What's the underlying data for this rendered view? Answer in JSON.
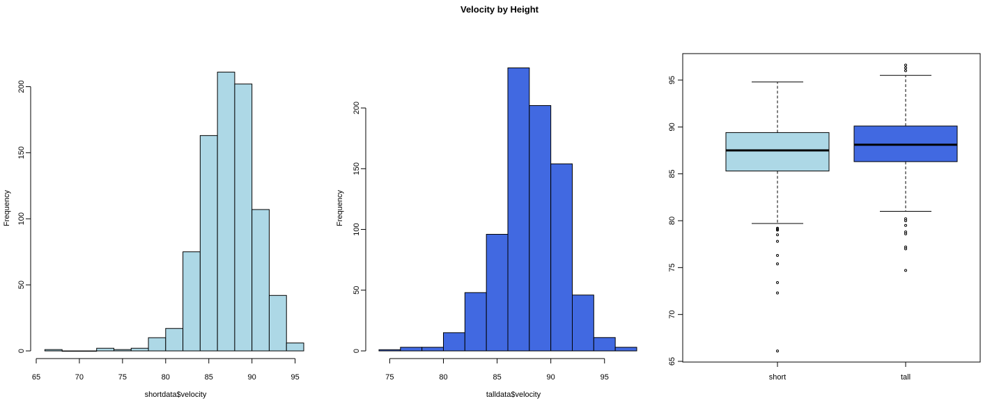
{
  "title": "Velocity by Height",
  "chart_data": [
    {
      "type": "bar",
      "subtype": "histogram",
      "color": "#ADD8E6",
      "xlabel": "shortdata$velocity",
      "ylabel": "Frequency",
      "bin_edges": [
        66,
        68,
        70,
        72,
        74,
        76,
        78,
        80,
        82,
        84,
        86,
        88,
        90,
        92,
        94,
        96
      ],
      "values": [
        1,
        0,
        0,
        2,
        1,
        2,
        10,
        17,
        75,
        163,
        211,
        202,
        107,
        42,
        6
      ],
      "xlim": [
        65,
        96
      ],
      "ylim": [
        0,
        215
      ],
      "xticks": [
        65,
        70,
        75,
        80,
        85,
        90,
        95
      ],
      "yticks": [
        0,
        50,
        100,
        150,
        200
      ]
    },
    {
      "type": "bar",
      "subtype": "histogram",
      "color": "#4169E1",
      "xlabel": "talldata$velocity",
      "ylabel": "Frequency",
      "bin_edges": [
        74,
        76,
        78,
        80,
        82,
        84,
        86,
        88,
        90,
        92,
        94,
        96,
        98
      ],
      "values": [
        1,
        3,
        3,
        15,
        48,
        96,
        233,
        202,
        154,
        46,
        11,
        3
      ],
      "xlim": [
        74,
        98
      ],
      "ylim": [
        0,
        235
      ],
      "xticks": [
        75,
        80,
        85,
        90,
        95
      ],
      "yticks": [
        0,
        50,
        100,
        150,
        200
      ]
    },
    {
      "type": "box",
      "categories": [
        "short",
        "tall"
      ],
      "ylim": [
        65,
        97
      ],
      "yticks": [
        65,
        70,
        75,
        80,
        85,
        90,
        95
      ],
      "boxes": [
        {
          "name": "short",
          "color": "#ADD8E6",
          "whisker_low": 79.7,
          "q1": 85.3,
          "median": 87.5,
          "q3": 89.4,
          "whisker_high": 94.8,
          "outliers": [
            79.0,
            79.1,
            79.2,
            78.5,
            77.8,
            76.3,
            75.4,
            73.4,
            72.3,
            66.1
          ]
        },
        {
          "name": "tall",
          "color": "#4169E1",
          "whisker_low": 81.0,
          "q1": 86.3,
          "median": 88.1,
          "q3": 90.1,
          "whisker_high": 95.5,
          "outliers": [
            96.0,
            96.3,
            96.6,
            80.0,
            80.2,
            79.5,
            78.8,
            78.6,
            77.2,
            77.0,
            74.7
          ]
        }
      ]
    }
  ]
}
